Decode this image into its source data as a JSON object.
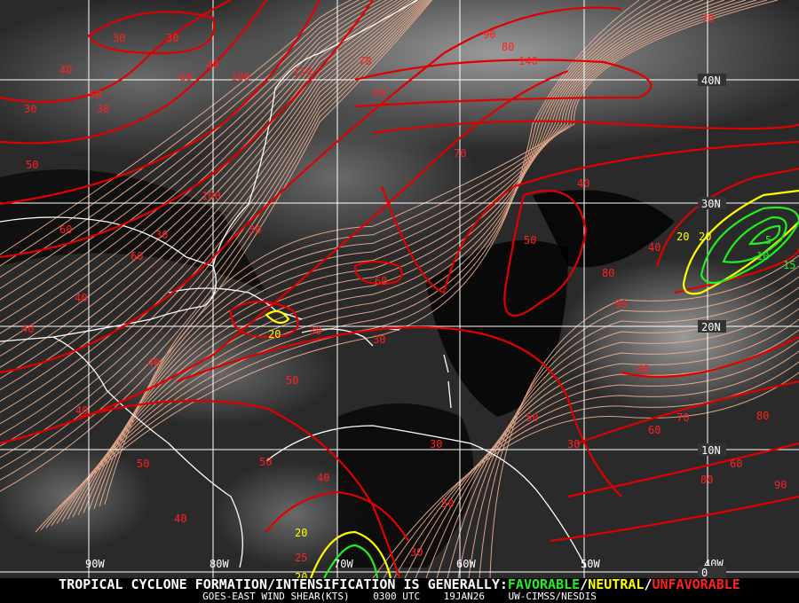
{
  "product": {
    "headline_prefix": "TROPICAL CYCLONE FORMATION/INTENSIFICATION IS GENERALLY:",
    "favorable": "FAVORABLE",
    "sep1": "/",
    "neutral": "NEUTRAL",
    "sep2": "/",
    "unfavorable": "UNFAVORABLE",
    "subtitle": "GOES-EAST WIND SHEAR(KTS)",
    "time": "0300 UTC",
    "date": "19JAN26",
    "source": "UW-CIMSS/NESDIS"
  },
  "colors": {
    "favorable": "#22ee22",
    "neutral": "#ffff00",
    "unfavorable": "#ff2020",
    "streamlines": "#f0b090",
    "grid": "#ffffff"
  },
  "grid": {
    "longitude_labels": [
      "90W",
      "80W",
      "70W",
      "60W",
      "50W",
      "40W"
    ],
    "latitude_labels": [
      "40N",
      "30N",
      "20N",
      "10N",
      "0"
    ]
  },
  "contour_labels": [
    "30",
    "30",
    "40",
    "60",
    "50",
    "40",
    "100",
    "90",
    "80",
    "140",
    "70",
    "110",
    "60",
    "30",
    "30",
    "50",
    "70",
    "60",
    "40",
    "60",
    "100",
    "30",
    "30",
    "40",
    "50",
    "40",
    "80",
    "40",
    "60",
    "30",
    "30",
    "20",
    "20",
    "20",
    "40",
    "50",
    "40",
    "40",
    "50",
    "50",
    "40",
    "30",
    "40",
    "50",
    "20",
    "25",
    "20",
    "30",
    "30",
    "60",
    "70",
    "60",
    "80",
    "80",
    "90",
    "90",
    "50",
    "5",
    "10",
    "15",
    "70"
  ]
}
